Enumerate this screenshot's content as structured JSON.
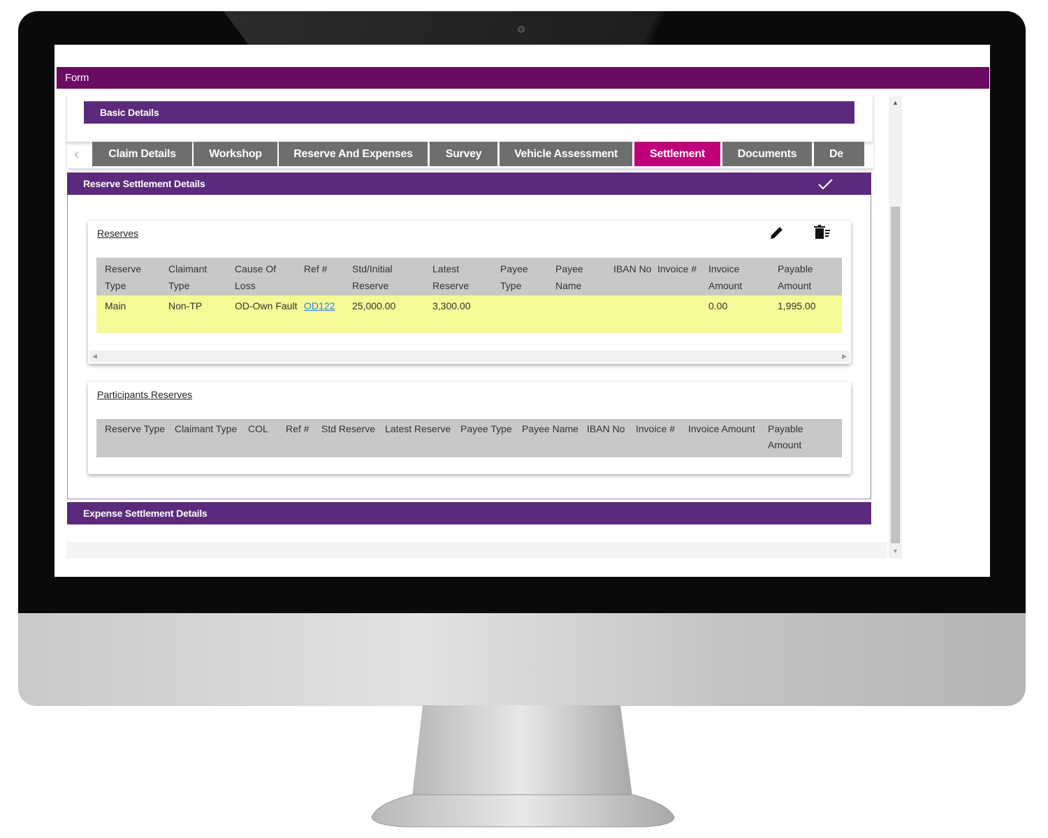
{
  "header": {
    "title": "Form"
  },
  "basic_details": {
    "title": "Basic Details"
  },
  "tabs": [
    "Claim Details",
    "Workshop",
    "Reserve And Expenses",
    "Survey",
    "Vehicle Assessment",
    "Settlement",
    "Documents",
    "De"
  ],
  "reserve_settlement": {
    "title": "Reserve Settlement Details",
    "reserves": {
      "title": "Reserves",
      "columns": [
        "Reserve Type",
        "Claimant Type",
        "Cause Of Loss",
        "Ref #",
        "Std/Initial Reserve",
        "Latest Reserve",
        "Payee Type",
        "Payee Name",
        "IBAN No",
        "Invoice #",
        "Invoice Amount",
        "Payable Amount"
      ],
      "rows": [
        [
          "Main",
          "Non-TP",
          "OD-Own Fault",
          "OD122",
          "25,000.00",
          "3,300.00",
          null,
          null,
          null,
          null,
          "0.00",
          "1,995.00"
        ]
      ]
    },
    "participants": {
      "title": "Participants Reserves",
      "columns": [
        "Reserve Type",
        "Claimant Type",
        "COL",
        "Ref #",
        "Std Reserve",
        "Latest Reserve",
        "Payee Type",
        "Payee Name",
        "IBAN No",
        "Invoice #",
        "Invoice Amount",
        "Payable Amount"
      ]
    }
  },
  "expense_settlement": {
    "title": "Expense Settlement Details"
  }
}
